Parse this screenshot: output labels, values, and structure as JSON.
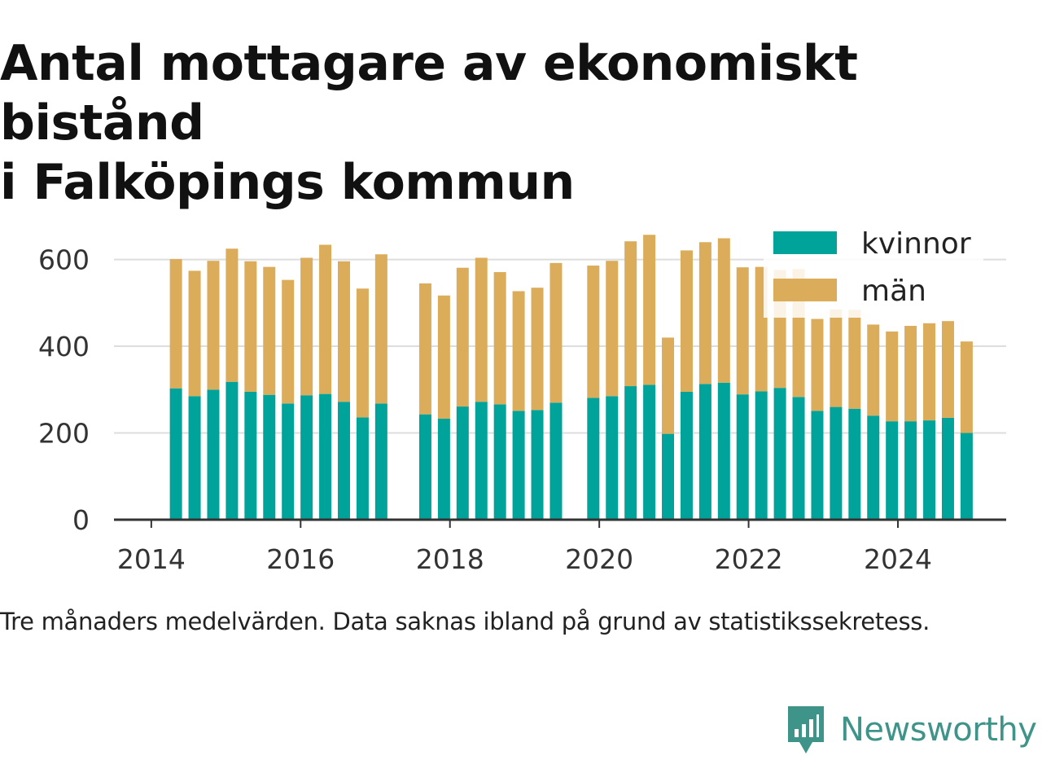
{
  "title_line1": "Antal mottagare av ekonomiskt bistånd",
  "title_line2": "i Falköpings kommun",
  "caption": "Tre månaders medelvärden. Data saknas ibland på grund av statistikssekretess.",
  "brand": {
    "name": "Newsworthy",
    "icon": "newsworthy-logo-icon",
    "color": "#3f9489"
  },
  "colors": {
    "kvinnor": "#00a39a",
    "man": "#dbac5a",
    "grid": "#dddddd",
    "axis": "#333333"
  },
  "chart_data": {
    "type": "bar",
    "stacked": true,
    "x_unit": "year",
    "ylim": [
      0,
      680
    ],
    "xlim": [
      2013.5,
      2025.45
    ],
    "y_ticks": [
      0,
      200,
      400,
      600
    ],
    "x_ticks": [
      2014,
      2016,
      2018,
      2020,
      2022,
      2024
    ],
    "y_tick_labels": [
      "0",
      "200",
      "400",
      "600"
    ],
    "x_tick_labels": [
      "2014",
      "2016",
      "2018",
      "2020",
      "2022",
      "2024"
    ],
    "grid": true,
    "legend_position": "top-right",
    "legend": [
      "kvinnor",
      "män"
    ],
    "x": [
      2014.33,
      2014.58,
      2014.83,
      2015.08,
      2015.33,
      2015.58,
      2015.83,
      2016.08,
      2016.33,
      2016.58,
      2016.83,
      2017.08,
      2017.67,
      2017.92,
      2018.17,
      2018.42,
      2018.67,
      2018.92,
      2019.17,
      2019.42,
      2019.92,
      2020.17,
      2020.42,
      2020.67,
      2020.92,
      2021.17,
      2021.42,
      2021.67,
      2021.92,
      2022.17,
      2022.42,
      2022.67,
      2022.92,
      2023.17,
      2023.42,
      2023.67,
      2023.92,
      2024.17,
      2024.42,
      2024.67,
      2024.92
    ],
    "series": [
      {
        "name": "kvinnor",
        "values": [
          303,
          285,
          300,
          318,
          295,
          288,
          268,
          287,
          290,
          272,
          236,
          268,
          243,
          233,
          261,
          272,
          266,
          251,
          253,
          270,
          281,
          285,
          308,
          311,
          198,
          295,
          313,
          316,
          289,
          296,
          304,
          283,
          251,
          260,
          256,
          240,
          227,
          227,
          229,
          235,
          200
        ]
      },
      {
        "name": "män",
        "values": [
          298,
          289,
          297,
          307,
          301,
          295,
          285,
          317,
          344,
          324,
          297,
          344,
          302,
          284,
          320,
          332,
          305,
          276,
          282,
          322,
          305,
          312,
          334,
          346,
          222,
          326,
          327,
          333,
          293,
          287,
          272,
          295,
          212,
          225,
          228,
          210,
          207,
          220,
          224,
          223,
          211
        ]
      }
    ]
  }
}
